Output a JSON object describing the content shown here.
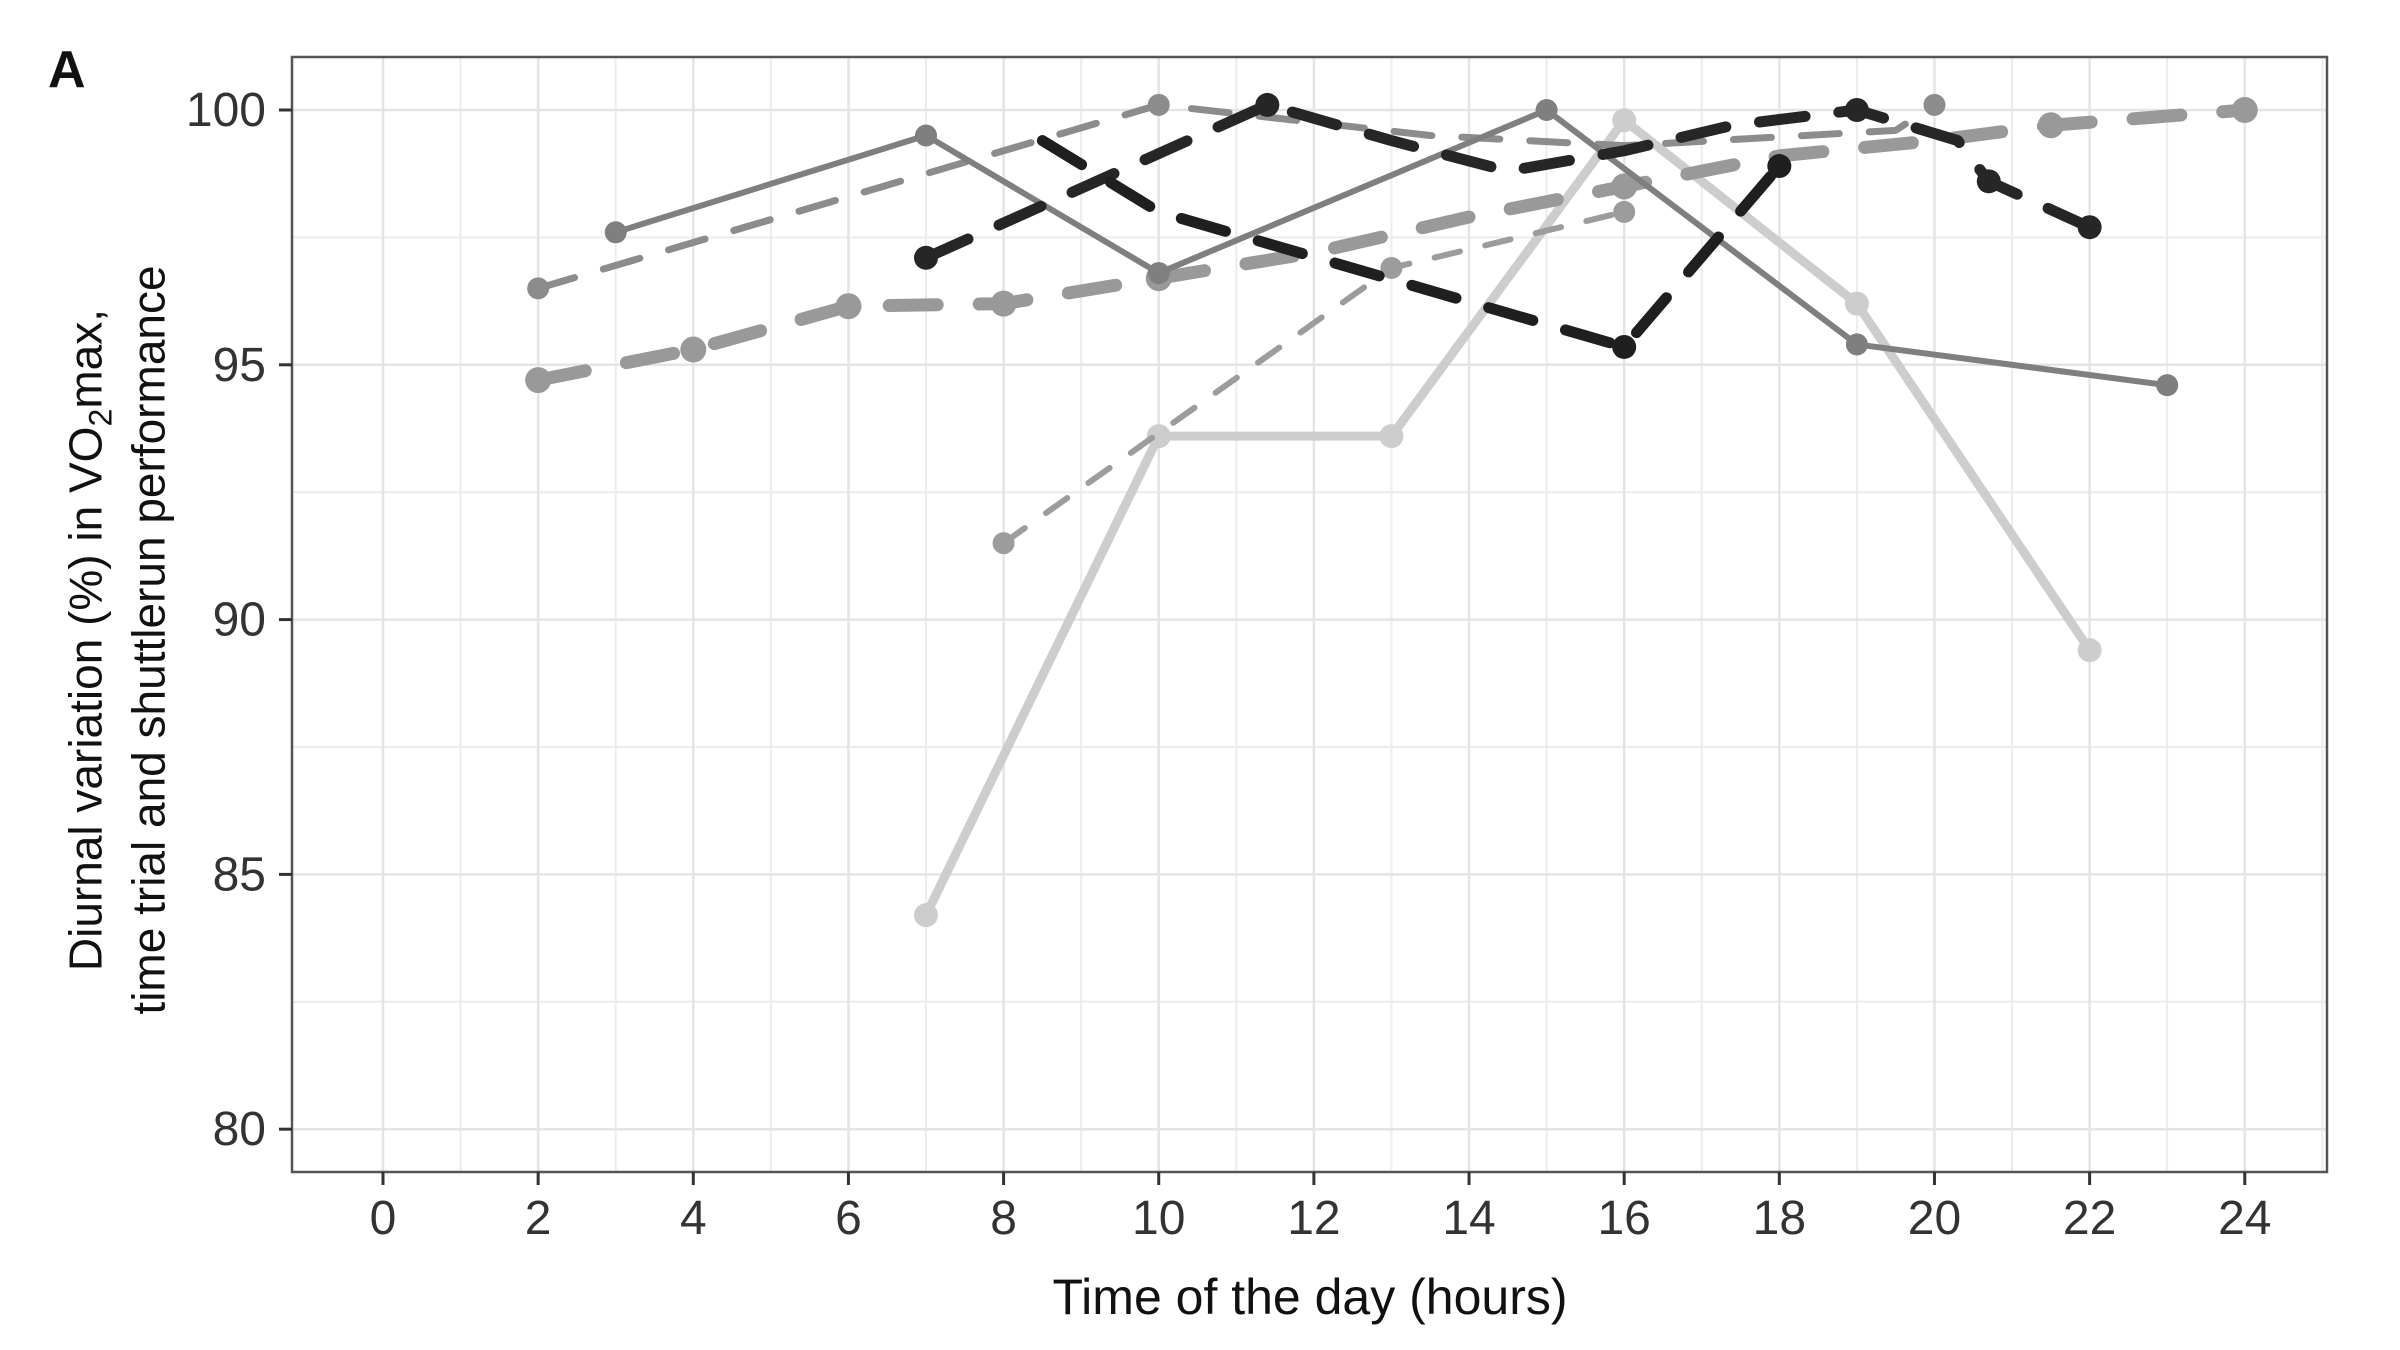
{
  "figure": {
    "panel_label": "A",
    "background": "#ffffff"
  },
  "chart_data": {
    "type": "line",
    "title": "",
    "panel_label": "A",
    "xlabel": "Time of the day (hours)",
    "ylabel_line1_pre": "Diurnal variation (%) in VO",
    "ylabel_sub": "2",
    "ylabel_line1_post": "max,",
    "ylabel_line2": "time trial and shuttlerun performance",
    "xlim": [
      -1.173,
      25.06
    ],
    "ylim": [
      79.16,
      101.04
    ],
    "x_major_ticks": [
      0,
      2,
      4,
      6,
      8,
      10,
      12,
      14,
      16,
      18,
      20,
      22,
      24
    ],
    "x_minor_ticks": [
      1,
      3,
      5,
      7,
      9,
      11,
      13,
      15,
      17,
      19,
      21,
      23,
      25
    ],
    "y_major_ticks": [
      80,
      85,
      90,
      95,
      100
    ],
    "y_minor_ticks": [
      82.5,
      87.5,
      92.5,
      97.5
    ],
    "grid": true,
    "legend": "none",
    "colors": {
      "panel_border": "#555555",
      "tick_mark": "#333333",
      "tick_label": "#333333",
      "grid_major": "#e4e4e4",
      "grid_minor": "#ececec"
    },
    "series": [
      {
        "name": "light-thick-solid",
        "style": "solid",
        "color": "#cdcdcd",
        "width": 9,
        "dash": [],
        "marker_radius": 12,
        "markers": [
          0,
          1,
          2,
          3,
          4,
          5
        ],
        "points": [
          [
            7,
            84.2
          ],
          [
            10,
            93.6
          ],
          [
            13,
            93.6
          ],
          [
            16,
            99.8
          ],
          [
            19,
            96.2
          ],
          [
            22,
            89.4
          ]
        ]
      },
      {
        "name": "thick-dashed-gray",
        "style": "dashed",
        "color": "#999999",
        "width": 13,
        "dash": [
          48,
          42
        ],
        "marker_radius": 13,
        "markers": [
          0,
          1,
          2,
          3,
          4,
          7,
          10,
          11
        ],
        "points": [
          [
            2,
            94.7
          ],
          [
            4,
            95.3
          ],
          [
            6,
            96.15
          ],
          [
            8,
            96.2
          ],
          [
            10,
            96.7
          ],
          [
            12,
            97.2
          ],
          [
            14,
            97.9
          ],
          [
            16,
            98.5
          ],
          [
            18,
            99.1
          ],
          [
            20,
            99.4
          ],
          [
            21.5,
            99.7
          ],
          [
            24,
            100
          ]
        ]
      },
      {
        "name": "medium-dashed-gray",
        "style": "dashed",
        "color": "#8c8c8c",
        "width": 7,
        "dash": [
          38,
          30
        ],
        "marker_radius": 11,
        "markers": [
          0,
          1,
          5
        ],
        "points": [
          [
            2,
            96.5
          ],
          [
            10,
            100.1
          ],
          [
            13.5,
            99.5
          ],
          [
            16,
            99.3
          ],
          [
            19.5,
            99.6
          ],
          [
            20,
            100.1
          ]
        ]
      },
      {
        "name": "thin-dashed-gray",
        "style": "dashed",
        "color": "#9c9c9c",
        "width": 6,
        "dash": [
          26,
          26
        ],
        "marker_radius": 11,
        "markers": [
          0,
          1,
          2
        ],
        "points": [
          [
            8,
            91.5
          ],
          [
            13,
            96.9
          ],
          [
            16,
            98.0
          ]
        ]
      },
      {
        "name": "solid-medium-gray",
        "style": "solid",
        "color": "#7f7f7f",
        "width": 6,
        "dash": [],
        "marker_radius": 11,
        "markers": [
          0,
          1,
          2,
          3,
          4,
          5
        ],
        "points": [
          [
            3,
            97.6
          ],
          [
            7,
            99.5
          ],
          [
            10,
            96.8
          ],
          [
            15,
            100
          ],
          [
            19,
            95.4
          ],
          [
            23,
            94.6
          ]
        ]
      },
      {
        "name": "black-dashed-zigzag",
        "style": "dashed",
        "color": "#262626",
        "width": 11,
        "dash": [
          46,
          34
        ],
        "marker_radius": 12,
        "markers": [
          0,
          1,
          6,
          8,
          9
        ],
        "points": [
          [
            7,
            97.1
          ],
          [
            11.4,
            100.1
          ],
          [
            13,
            99.4
          ],
          [
            14.5,
            98.8
          ],
          [
            16,
            99.2
          ],
          [
            17.4,
            99.7
          ],
          [
            19,
            100
          ],
          [
            20.3,
            99.4
          ],
          [
            20.7,
            98.6
          ],
          [
            22,
            97.7
          ]
        ]
      },
      {
        "name": "black-dashed-vee",
        "style": "dashed",
        "color": "#1f1f1f",
        "width": 11,
        "dash": [
          46,
          34
        ],
        "marker_radius": 12,
        "markers": [
          2,
          3
        ],
        "points": [
          [
            8.5,
            99.4
          ],
          [
            10,
            98.0
          ],
          [
            16,
            95.35
          ],
          [
            18,
            98.9
          ]
        ]
      }
    ]
  }
}
